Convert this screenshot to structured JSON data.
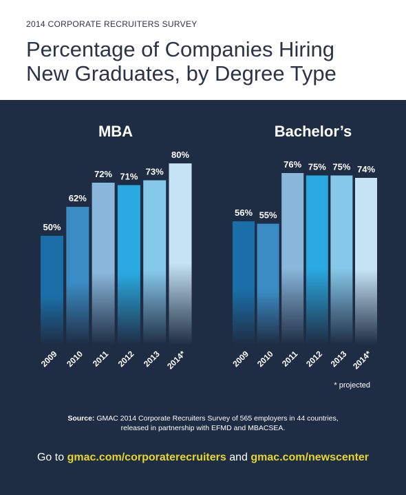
{
  "header": {
    "subtitle": "2014 CORPORATE RECRUITERS SURVEY",
    "title_lines": [
      "Percentage of Companies Hiring",
      "New Graduates, by Degree Type"
    ]
  },
  "chart_data": [
    {
      "type": "bar",
      "title": "MBA",
      "categories": [
        "2009",
        "2010",
        "2011",
        "2012",
        "2013",
        "2014*"
      ],
      "values": [
        50,
        62,
        72,
        71,
        73,
        80
      ],
      "value_labels": [
        "50%",
        "62%",
        "72%",
        "71%",
        "73%",
        "80%"
      ],
      "colors": [
        "#1a6fa8",
        "#3b8cc4",
        "#8ab8dc",
        "#2aa9e0",
        "#86c8ea",
        "#c5e3f5"
      ]
    },
    {
      "type": "bar",
      "title": "Bachelor’s",
      "categories": [
        "2009",
        "2010",
        "2011",
        "2012",
        "2013",
        "2014*"
      ],
      "values": [
        56,
        55,
        76,
        75,
        75,
        74
      ],
      "value_labels": [
        "56%",
        "55%",
        "76%",
        "75%",
        "75%",
        "74%"
      ],
      "colors": [
        "#1a6fa8",
        "#3b8cc4",
        "#8ab8dc",
        "#2aa9e0",
        "#86c8ea",
        "#c5e3f5"
      ]
    }
  ],
  "footer": {
    "note": "* projected",
    "source_label": "Source:",
    "source_lines": [
      "GMAC 2014 Corporate Recruiters Survey of 565 employers in 44 countries,",
      "released in partnership with EFMD and MBACSEA."
    ],
    "cta": {
      "lead": "Go to",
      "link1": "gmac.com/corporaterecruiters",
      "join": "and",
      "link2": "gmac.com/newscenter"
    }
  }
}
